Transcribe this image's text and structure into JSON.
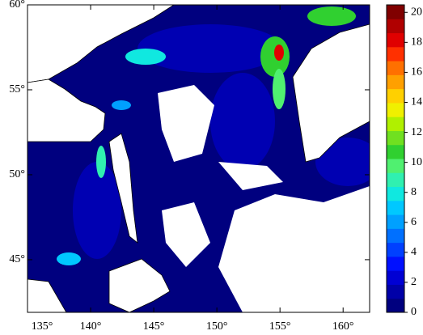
{
  "chart_data": {
    "type": "heatmap",
    "xlim": [
      135,
      162.1
    ],
    "ylim": [
      41.9,
      60
    ],
    "xticks": [
      {
        "value": 135,
        "label": "135°"
      },
      {
        "value": 140,
        "label": "140°"
      },
      {
        "value": 145,
        "label": "145°"
      },
      {
        "value": 150,
        "label": "150°"
      },
      {
        "value": 155,
        "label": "155°"
      },
      {
        "value": 160,
        "label": "160°"
      }
    ],
    "yticks": [
      {
        "value": 45,
        "label": "45°"
      },
      {
        "value": 50,
        "label": "50°"
      },
      {
        "value": 55,
        "label": "55°"
      },
      {
        "value": 60,
        "label": "60°"
      }
    ],
    "clim": [
      0,
      20.5
    ],
    "cticks": [
      0,
      2,
      4,
      6,
      8,
      10,
      12,
      14,
      16,
      18,
      20
    ],
    "colormap": [
      "#00007f",
      "#0000a8",
      "#0000d4",
      "#0010ff",
      "#0040ff",
      "#0070ff",
      "#00a0ff",
      "#00c8ff",
      "#10e8e0",
      "#30f0b0",
      "#50f070",
      "#30d030",
      "#70e020",
      "#b0f000",
      "#f0f000",
      "#ffd000",
      "#ffa000",
      "#ff7000",
      "#ff3000",
      "#e00000",
      "#b00000",
      "#800000"
    ]
  }
}
